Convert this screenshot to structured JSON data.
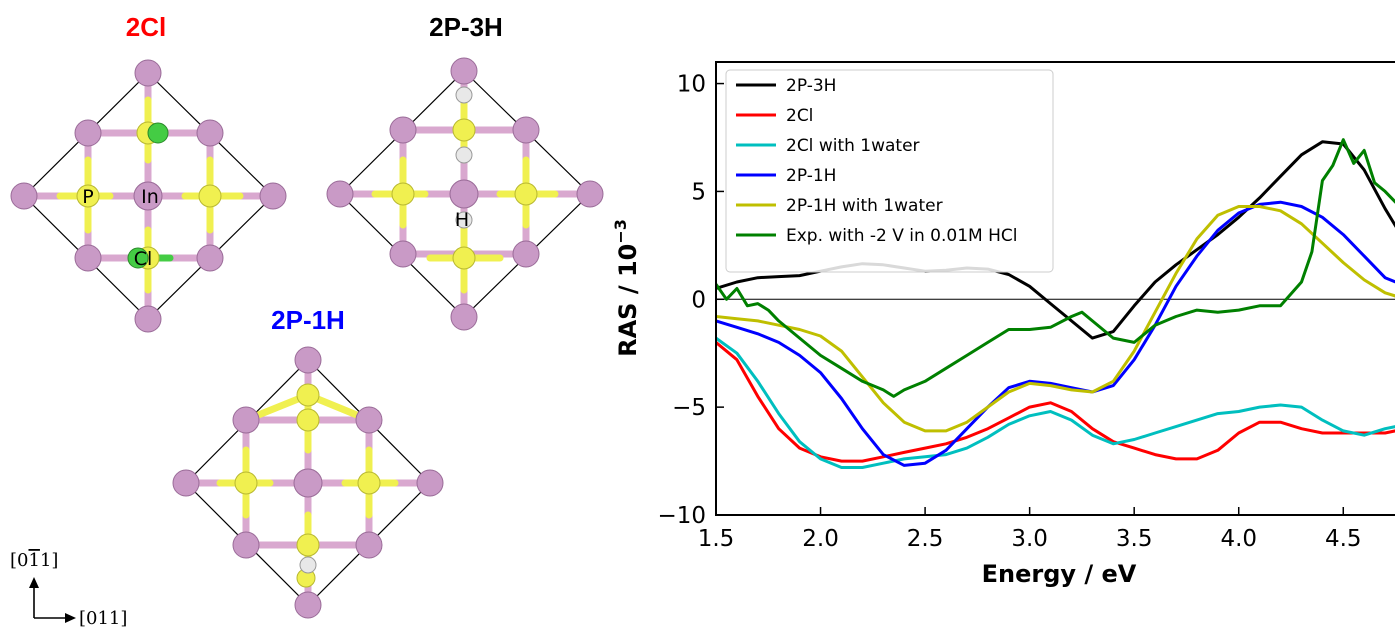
{
  "structures": {
    "titles": [
      {
        "text": "2Cl",
        "color": "#ff0000"
      },
      {
        "text": "2P-3H",
        "color": "#000000"
      },
      {
        "text": "2P-1H",
        "color": "#0000ff"
      }
    ],
    "atom_labels": [
      "P",
      "In",
      "Cl",
      "H"
    ],
    "atom_colors": {
      "In": "#c897c8",
      "P": "#f0f050",
      "Cl": "#44cc44",
      "H": "#e8e8e8"
    },
    "axis_vertical": "[0ł1]",
    "axis_horizontal": "[011]"
  },
  "chart_data": {
    "type": "line",
    "xlabel": "Energy / eV",
    "ylabel": "RAS / 10",
    "ylabel_exponent": "−3",
    "xlim": [
      1.5,
      4.8
    ],
    "ylim": [
      -10,
      11
    ],
    "xticks": [
      "1.5",
      "2.0",
      "2.5",
      "3.0",
      "3.5",
      "4.0",
      "4.5"
    ],
    "xtick_values": [
      1.5,
      2.0,
      2.5,
      3.0,
      3.5,
      4.0,
      4.5
    ],
    "yticks": [
      "−10",
      "−5",
      "0",
      "5",
      "10"
    ],
    "ytick_values": [
      -10,
      -5,
      0,
      5,
      10
    ],
    "zero_line": true,
    "legend_position": "top-left",
    "series": [
      {
        "name": "2P-3H",
        "color": "#000000",
        "x": [
          1.5,
          1.6,
          1.7,
          1.8,
          1.9,
          2.0,
          2.1,
          2.2,
          2.3,
          2.4,
          2.5,
          2.6,
          2.7,
          2.8,
          2.9,
          3.0,
          3.1,
          3.2,
          3.3,
          3.4,
          3.5,
          3.6,
          3.7,
          3.8,
          3.9,
          4.0,
          4.1,
          4.2,
          4.3,
          4.4,
          4.5,
          4.6,
          4.7,
          4.8
        ],
        "y": [
          0.5,
          0.8,
          1.0,
          1.05,
          1.1,
          1.3,
          1.5,
          1.65,
          1.6,
          1.45,
          1.3,
          1.35,
          1.45,
          1.4,
          1.15,
          0.6,
          -0.2,
          -1.0,
          -1.8,
          -1.5,
          -0.3,
          0.8,
          1.6,
          2.3,
          3.0,
          3.8,
          4.7,
          5.7,
          6.7,
          7.3,
          7.2,
          6.0,
          4.2,
          2.6
        ]
      },
      {
        "name": "2Cl",
        "color": "#ff0000",
        "x": [
          1.5,
          1.6,
          1.7,
          1.8,
          1.9,
          2.0,
          2.1,
          2.2,
          2.3,
          2.4,
          2.5,
          2.6,
          2.7,
          2.8,
          2.9,
          3.0,
          3.1,
          3.2,
          3.3,
          3.4,
          3.5,
          3.6,
          3.7,
          3.8,
          3.9,
          4.0,
          4.1,
          4.2,
          4.3,
          4.4,
          4.5,
          4.6,
          4.7,
          4.8
        ],
        "y": [
          -2.0,
          -2.8,
          -4.5,
          -6.0,
          -6.9,
          -7.3,
          -7.5,
          -7.5,
          -7.3,
          -7.1,
          -6.9,
          -6.7,
          -6.4,
          -6.0,
          -5.5,
          -5.0,
          -4.8,
          -5.2,
          -6.0,
          -6.6,
          -6.9,
          -7.2,
          -7.4,
          -7.4,
          -7.0,
          -6.2,
          -5.7,
          -5.7,
          -6.0,
          -6.2,
          -6.2,
          -6.2,
          -6.2,
          -6.0
        ]
      },
      {
        "name": "2Cl with 1water",
        "color": "#00bfbf",
        "x": [
          1.5,
          1.6,
          1.7,
          1.8,
          1.9,
          2.0,
          2.1,
          2.2,
          2.3,
          2.4,
          2.5,
          2.6,
          2.7,
          2.8,
          2.9,
          3.0,
          3.1,
          3.2,
          3.3,
          3.4,
          3.5,
          3.6,
          3.7,
          3.8,
          3.9,
          4.0,
          4.1,
          4.2,
          4.3,
          4.4,
          4.5,
          4.6,
          4.7,
          4.8
        ],
        "y": [
          -1.8,
          -2.5,
          -3.8,
          -5.3,
          -6.6,
          -7.4,
          -7.8,
          -7.8,
          -7.6,
          -7.4,
          -7.3,
          -7.2,
          -6.9,
          -6.4,
          -5.8,
          -5.4,
          -5.2,
          -5.6,
          -6.3,
          -6.7,
          -6.5,
          -6.2,
          -5.9,
          -5.6,
          -5.3,
          -5.2,
          -5.0,
          -4.9,
          -5.0,
          -5.6,
          -6.1,
          -6.3,
          -6.0,
          -5.8
        ]
      },
      {
        "name": "2P-1H",
        "color": "#0000ff",
        "x": [
          1.5,
          1.6,
          1.7,
          1.8,
          1.9,
          2.0,
          2.1,
          2.2,
          2.3,
          2.4,
          2.5,
          2.6,
          2.7,
          2.8,
          2.9,
          3.0,
          3.1,
          3.2,
          3.3,
          3.4,
          3.5,
          3.6,
          3.7,
          3.8,
          3.9,
          4.0,
          4.1,
          4.2,
          4.3,
          4.4,
          4.5,
          4.6,
          4.7,
          4.8
        ],
        "y": [
          -1.0,
          -1.3,
          -1.6,
          -2.0,
          -2.6,
          -3.4,
          -4.6,
          -6.0,
          -7.2,
          -7.7,
          -7.6,
          -7.0,
          -6.0,
          -5.0,
          -4.1,
          -3.8,
          -3.9,
          -4.1,
          -4.3,
          -4.0,
          -2.8,
          -1.2,
          0.6,
          2.0,
          3.2,
          4.0,
          4.4,
          4.5,
          4.3,
          3.8,
          3.0,
          2.0,
          1.0,
          0.6
        ]
      },
      {
        "name": "2P-1H with 1water",
        "color": "#bfbf00",
        "x": [
          1.5,
          1.6,
          1.7,
          1.8,
          1.9,
          2.0,
          2.1,
          2.2,
          2.3,
          2.4,
          2.5,
          2.6,
          2.7,
          2.8,
          2.9,
          3.0,
          3.1,
          3.2,
          3.3,
          3.4,
          3.5,
          3.6,
          3.7,
          3.8,
          3.9,
          4.0,
          4.1,
          4.2,
          4.3,
          4.4,
          4.5,
          4.6,
          4.7,
          4.8
        ],
        "y": [
          -0.8,
          -0.9,
          -1.0,
          -1.2,
          -1.4,
          -1.7,
          -2.4,
          -3.6,
          -4.8,
          -5.7,
          -6.1,
          -6.1,
          -5.7,
          -5.0,
          -4.3,
          -3.9,
          -4.0,
          -4.2,
          -4.3,
          -3.8,
          -2.4,
          -0.6,
          1.2,
          2.8,
          3.9,
          4.3,
          4.3,
          4.1,
          3.5,
          2.6,
          1.7,
          0.9,
          0.3,
          0.0
        ]
      },
      {
        "name": "Exp. with -2 V in 0.01M HCl",
        "color": "#008000",
        "x": [
          1.5,
          1.55,
          1.6,
          1.65,
          1.7,
          1.75,
          1.8,
          1.9,
          2.0,
          2.1,
          2.2,
          2.3,
          2.35,
          2.4,
          2.5,
          2.6,
          2.7,
          2.8,
          2.9,
          3.0,
          3.1,
          3.2,
          3.25,
          3.3,
          3.4,
          3.5,
          3.6,
          3.7,
          3.8,
          3.9,
          4.0,
          4.1,
          4.2,
          4.3,
          4.35,
          4.4,
          4.45,
          4.5,
          4.55,
          4.6,
          4.65,
          4.7,
          4.75,
          4.8
        ],
        "y": [
          0.7,
          0.0,
          0.5,
          -0.3,
          -0.2,
          -0.5,
          -1.0,
          -1.8,
          -2.6,
          -3.2,
          -3.8,
          -4.2,
          -4.5,
          -4.2,
          -3.8,
          -3.2,
          -2.6,
          -2.0,
          -1.4,
          -1.4,
          -1.3,
          -0.8,
          -0.6,
          -1.0,
          -1.8,
          -2.0,
          -1.2,
          -0.8,
          -0.5,
          -0.6,
          -0.5,
          -0.3,
          -0.3,
          0.8,
          2.2,
          5.5,
          6.2,
          7.4,
          6.3,
          6.9,
          5.4,
          5.0,
          4.5,
          4.8
        ]
      }
    ]
  }
}
